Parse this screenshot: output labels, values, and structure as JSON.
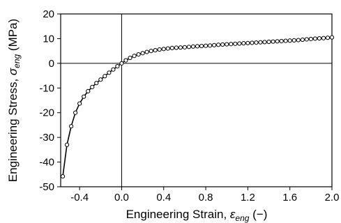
{
  "chart_data": {
    "type": "line",
    "title": "",
    "xlabel": {
      "text": "Engineering Strain, ",
      "symbol": "ε",
      "subscript": "eng",
      "unit": " (−)"
    },
    "ylabel": {
      "text": "Engineering Stress, ",
      "symbol": "σ",
      "subscript": "eng",
      "unit": " (MPa)"
    },
    "xlim": [
      -0.58,
      2.0
    ],
    "ylim": [
      -50,
      20
    ],
    "x_ticks": [
      -0.4,
      0.0,
      0.4,
      0.8,
      1.2,
      1.6,
      2.0
    ],
    "x_tick_labels": [
      "-0.4",
      "0.0",
      "0.4",
      "0.8",
      "1.2",
      "1.6",
      "2.0"
    ],
    "y_ticks": [
      -50,
      -40,
      -30,
      -20,
      -10,
      0,
      10,
      20
    ],
    "y_tick_labels": [
      "-50",
      "-40",
      "-30",
      "-20",
      "-10",
      "0",
      "10",
      "20"
    ],
    "reference_lines": {
      "x_zero": true,
      "y_zero": true
    },
    "grid": false,
    "series": [
      {
        "marker": "open-circle",
        "color": "#000000",
        "x": [
          -0.56,
          -0.52,
          -0.48,
          -0.44,
          -0.4,
          -0.36,
          -0.32,
          -0.28,
          -0.24,
          -0.2,
          -0.16,
          -0.12,
          -0.08,
          -0.04,
          0.0,
          0.04,
          0.08,
          0.12,
          0.16,
          0.2,
          0.24,
          0.28,
          0.32,
          0.36,
          0.4,
          0.44,
          0.48,
          0.52,
          0.56,
          0.6,
          0.64,
          0.68,
          0.72,
          0.76,
          0.8,
          0.84,
          0.88,
          0.92,
          0.96,
          1.0,
          1.04,
          1.08,
          1.12,
          1.16,
          1.2,
          1.24,
          1.28,
          1.32,
          1.36,
          1.4,
          1.44,
          1.48,
          1.52,
          1.56,
          1.6,
          1.64,
          1.68,
          1.72,
          1.76,
          1.8,
          1.84,
          1.88,
          1.92,
          1.96,
          2.0
        ],
        "y": [
          -45.8,
          -33.0,
          -25.5,
          -20.0,
          -16.3,
          -13.5,
          -11.3,
          -9.6,
          -8.0,
          -6.6,
          -5.2,
          -3.8,
          -2.5,
          -1.2,
          0.0,
          1.2,
          2.2,
          3.0,
          3.6,
          4.1,
          4.6,
          5.0,
          5.3,
          5.6,
          5.8,
          6.0,
          6.2,
          6.3,
          6.4,
          6.5,
          6.65,
          6.8,
          6.9,
          7.0,
          7.1,
          7.2,
          7.35,
          7.5,
          7.6,
          7.7,
          7.8,
          7.9,
          8.0,
          8.1,
          8.2,
          8.3,
          8.4,
          8.5,
          8.6,
          8.7,
          8.8,
          8.9,
          9.0,
          9.1,
          9.2,
          9.3,
          9.4,
          9.55,
          9.7,
          9.85,
          10.0,
          10.1,
          10.2,
          10.35,
          10.5
        ]
      }
    ]
  }
}
